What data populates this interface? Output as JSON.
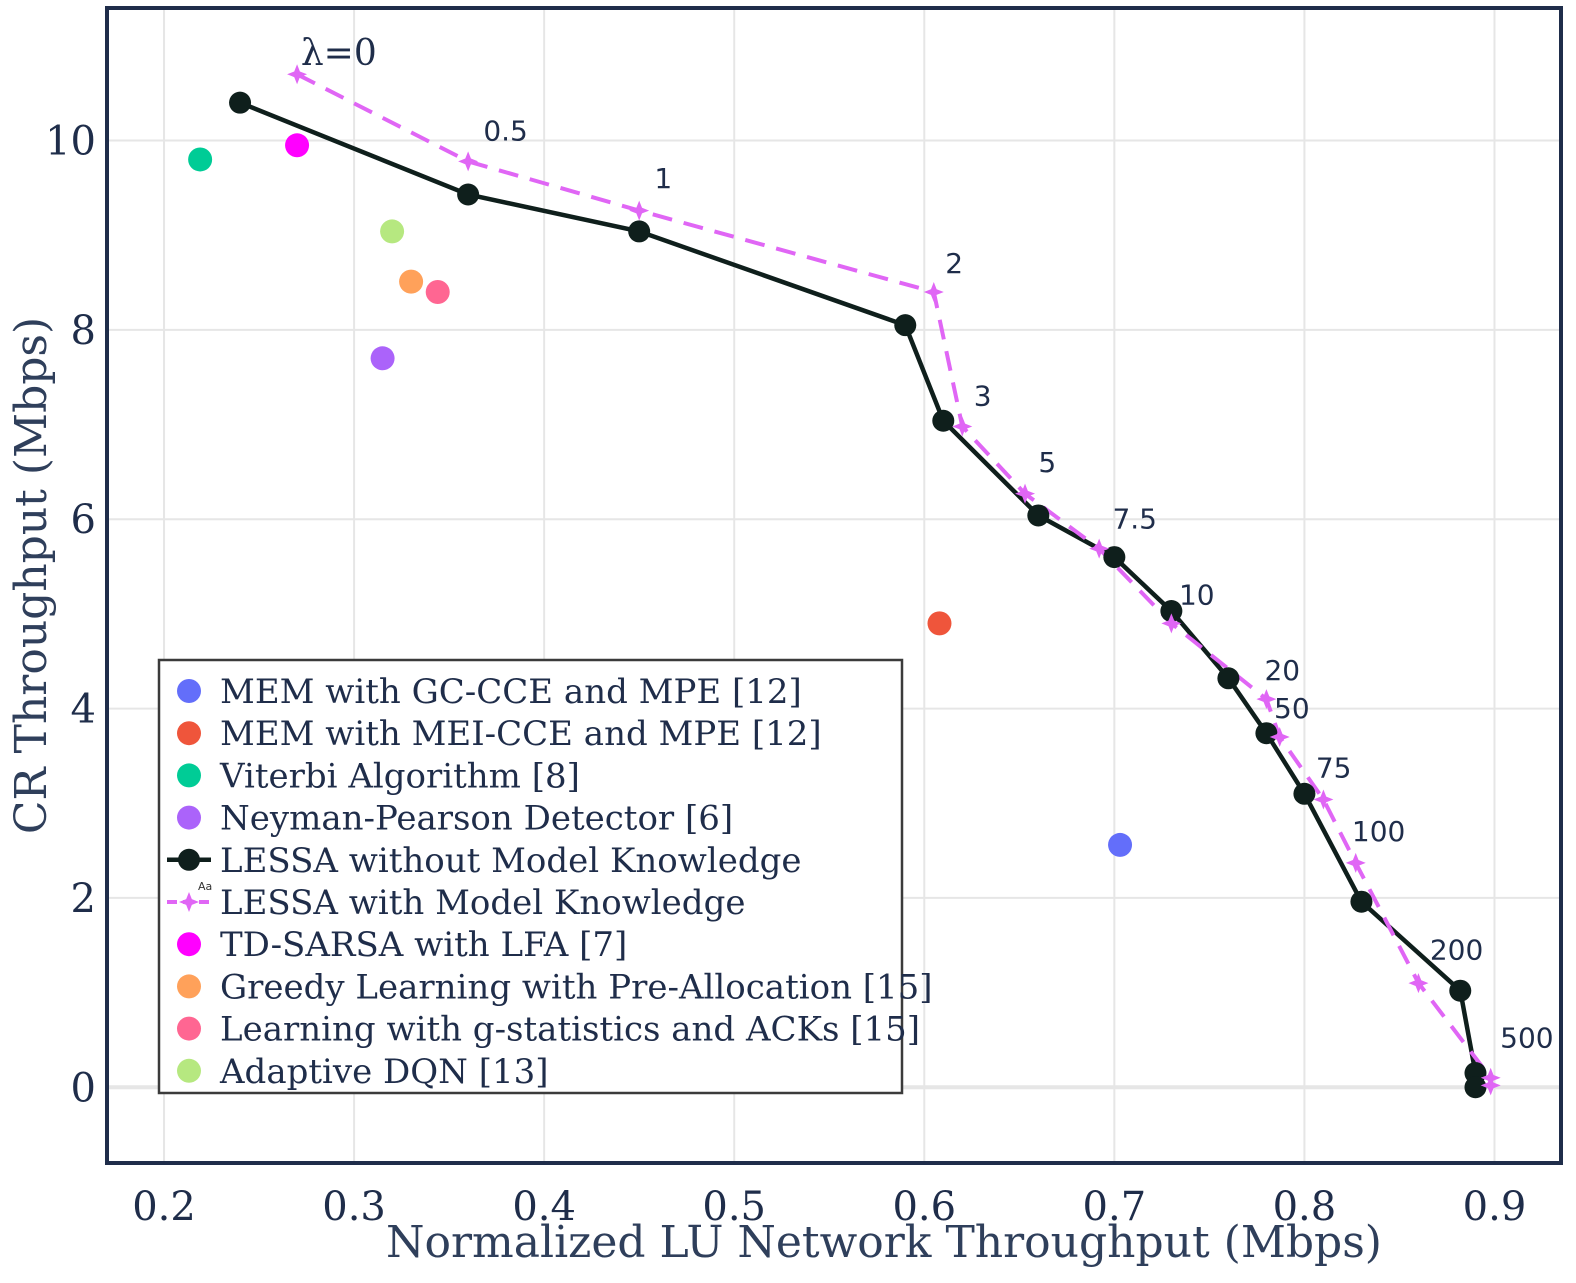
{
  "chart_data": {
    "type": "scatter",
    "xlabel": "Normalized LU Network Throughput (Mbps)",
    "ylabel": "CR Throughput (Mbps)",
    "xlim": [
      0.17,
      0.935
    ],
    "ylim": [
      -0.8,
      11.4
    ],
    "x_ticks": [
      "0.2",
      "0.3",
      "0.4",
      "0.5",
      "0.6",
      "0.7",
      "0.8",
      "0.9"
    ],
    "x_tick_values": [
      0.2,
      0.3,
      0.4,
      0.5,
      0.6,
      0.7,
      0.8,
      0.9
    ],
    "y_ticks": [
      "0",
      "2",
      "4",
      "6",
      "8",
      "10"
    ],
    "y_tick_values": [
      0,
      2,
      4,
      6,
      8,
      10
    ],
    "grid": true,
    "legend_position": "bottom-left",
    "series": [
      {
        "name": "MEM with GC-CCE and MPE [12]",
        "kind": "point",
        "color": "#636efa",
        "points": [
          [
            0.703,
            2.56
          ]
        ]
      },
      {
        "name": "MEM with MEI-CCE and MPE [12]",
        "kind": "point",
        "color": "#ef553b",
        "points": [
          [
            0.608,
            4.9
          ]
        ]
      },
      {
        "name": "Viterbi Algorithm [8]",
        "kind": "point",
        "color": "#00cc96",
        "points": [
          [
            0.219,
            9.8
          ]
        ]
      },
      {
        "name": "Neyman-Pearson Detector [6]",
        "kind": "point",
        "color": "#ab63fa",
        "points": [
          [
            0.315,
            7.7
          ]
        ]
      },
      {
        "name": "LESSA without Model Knowledge",
        "kind": "line-marker",
        "color": "#0f1f1c",
        "points": [
          [
            0.24,
            10.4
          ],
          [
            0.36,
            9.43
          ],
          [
            0.45,
            9.04
          ],
          [
            0.59,
            8.05
          ],
          [
            0.61,
            7.04
          ],
          [
            0.66,
            6.04
          ],
          [
            0.7,
            5.6
          ],
          [
            0.73,
            5.03
          ],
          [
            0.76,
            4.32
          ],
          [
            0.78,
            3.74
          ],
          [
            0.8,
            3.1
          ],
          [
            0.83,
            1.96
          ],
          [
            0.882,
            1.02
          ],
          [
            0.89,
            0.15
          ],
          [
            0.89,
            0.0
          ]
        ]
      },
      {
        "name": "LESSA with Model Knowledge",
        "kind": "dashed-star",
        "color": "#e066f5",
        "points": [
          [
            0.27,
            10.7
          ],
          [
            0.36,
            9.78
          ],
          [
            0.45,
            9.26
          ],
          [
            0.605,
            8.4
          ],
          [
            0.62,
            6.98
          ],
          [
            0.653,
            6.27
          ],
          [
            0.692,
            5.69
          ],
          [
            0.73,
            4.9
          ],
          [
            0.78,
            4.1
          ],
          [
            0.787,
            3.7
          ],
          [
            0.81,
            3.04
          ],
          [
            0.827,
            2.37
          ],
          [
            0.86,
            1.1
          ],
          [
            0.898,
            0.1
          ],
          [
            0.898,
            0.02
          ]
        ]
      },
      {
        "name": "TD-SARSA with LFA [7]",
        "kind": "point",
        "color": "#ff00ff",
        "points": [
          [
            0.27,
            9.95
          ]
        ]
      },
      {
        "name": "Greedy Learning with Pre-Allocation [15]",
        "kind": "point",
        "color": "#ffa15a",
        "points": [
          [
            0.33,
            8.51
          ]
        ]
      },
      {
        "name": "Learning with g-statistics and ACKs [15]",
        "kind": "point",
        "color": "#ff6692",
        "points": [
          [
            0.344,
            8.4
          ]
        ]
      },
      {
        "name": "Adaptive DQN [13]",
        "kind": "point",
        "color": "#b6e880",
        "points": [
          [
            0.32,
            9.04
          ]
        ]
      }
    ],
    "annotations": [
      {
        "text": "λ=0",
        "x": 0.272,
        "y": 10.8,
        "style": "lambda"
      },
      {
        "text": "0.5",
        "x": 0.368,
        "y": 10.0
      },
      {
        "text": "1",
        "x": 0.458,
        "y": 9.5
      },
      {
        "text": "2",
        "x": 0.611,
        "y": 8.6
      },
      {
        "text": "3",
        "x": 0.626,
        "y": 7.2
      },
      {
        "text": "5",
        "x": 0.66,
        "y": 6.5
      },
      {
        "text": "7.5",
        "x": 0.699,
        "y": 5.9
      },
      {
        "text": "10",
        "x": 0.734,
        "y": 5.1
      },
      {
        "text": "20",
        "x": 0.779,
        "y": 4.3
      },
      {
        "text": "50",
        "x": 0.784,
        "y": 3.9
      },
      {
        "text": "75",
        "x": 0.806,
        "y": 3.27
      },
      {
        "text": "100",
        "x": 0.825,
        "y": 2.6
      },
      {
        "text": "200",
        "x": 0.866,
        "y": 1.35
      },
      {
        "text": "500",
        "x": 0.903,
        "y": 0.42
      }
    ],
    "legend_icon_text": "Aa"
  }
}
